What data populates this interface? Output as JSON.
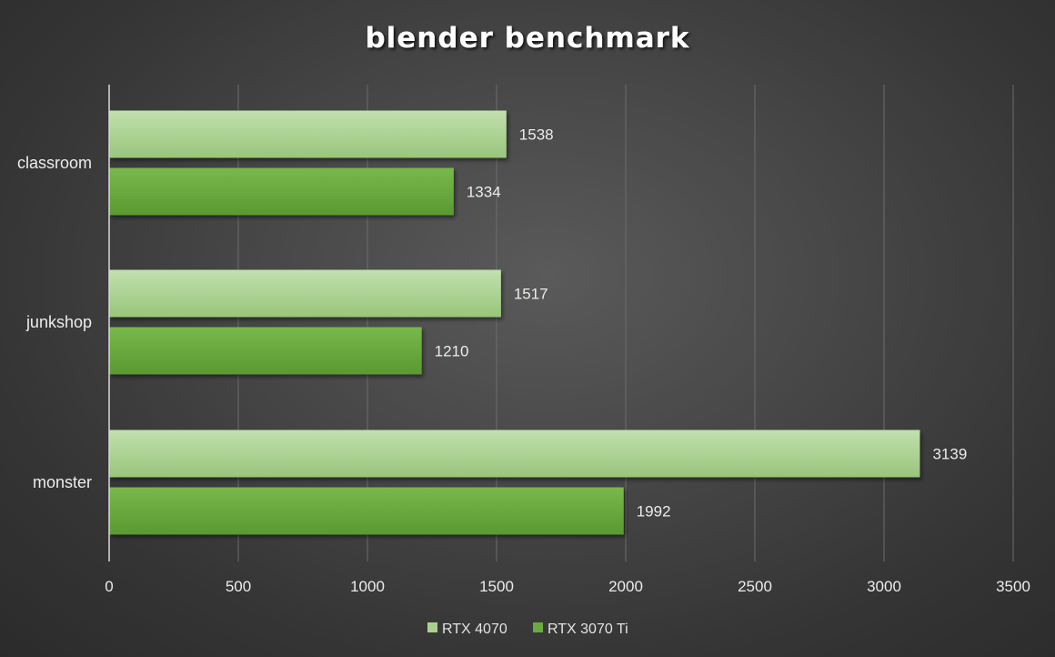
{
  "chart_data": {
    "type": "bar",
    "orientation": "horizontal",
    "title": "blender benchmark",
    "categories": [
      "classroom",
      "junkshop",
      "monster"
    ],
    "series": [
      {
        "name": "RTX 4070",
        "values": [
          1538,
          1517,
          3139
        ],
        "color": "#a9d18e"
      },
      {
        "name": "RTX 3070 Ti",
        "values": [
          1334,
          1210,
          1992
        ],
        "color": "#6aaa3e"
      }
    ],
    "xlim": [
      0,
      3500
    ],
    "x_ticks": [
      0,
      500,
      1000,
      1500,
      2000,
      2500,
      3000,
      3500
    ],
    "x_tick_labels": [
      "0",
      "500",
      "1000",
      "1500",
      "2000",
      "2500",
      "3000",
      "3500"
    ],
    "grid": "vertical",
    "legend_position": "bottom",
    "data_labels": true
  }
}
